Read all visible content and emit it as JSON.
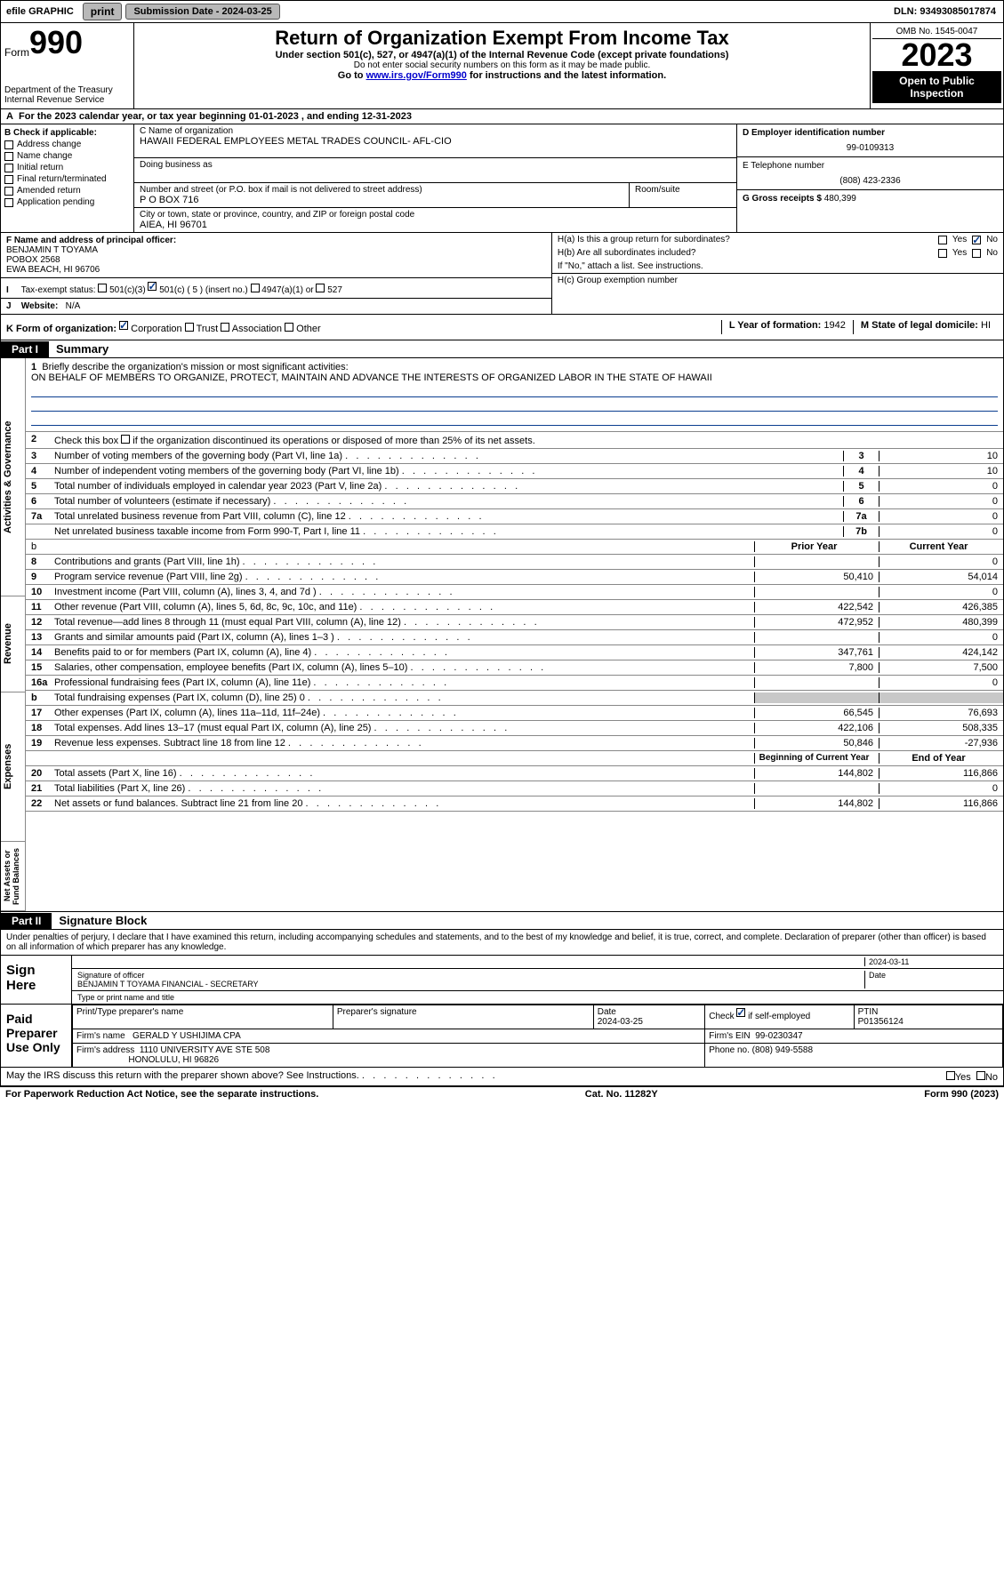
{
  "topbar": {
    "efile_label": "efile GRAPHIC",
    "print_btn": "print",
    "submission_label": "Submission Date - 2024-03-25",
    "dln_label": "DLN: 93493085017874"
  },
  "header": {
    "form_word": "Form",
    "form_num": "990",
    "dept1": "Department of the Treasury",
    "dept2": "Internal Revenue Service",
    "title": "Return of Organization Exempt From Income Tax",
    "sub": "Under section 501(c), 527, or 4947(a)(1) of the Internal Revenue Code (except private foundations)",
    "sub2": "Do not enter social security numbers on this form as it may be made public.",
    "sub3": "Go to ",
    "link": "www.irs.gov/Form990",
    "sub3b": " for instructions and the latest information.",
    "omb": "OMB No. 1545-0047",
    "year": "2023",
    "open": "Open to Public Inspection"
  },
  "line_a": "For the 2023 calendar year, or tax year beginning 01-01-2023    , and ending 12-31-2023",
  "section_b": {
    "label": "B Check if applicable:",
    "items": [
      "Address change",
      "Name change",
      "Initial return",
      "Final return/terminated",
      "Amended return",
      "Application pending"
    ]
  },
  "section_c": {
    "label": "C Name of organization",
    "name": "HAWAII FEDERAL EMPLOYEES METAL TRADES COUNCIL- AFL-CIO",
    "dba_label": "Doing business as",
    "addr_label": "Number and street (or P.O. box if mail is not delivered to street address)",
    "room_label": "Room/suite",
    "addr": "P O BOX 716",
    "city_label": "City or town, state or province, country, and ZIP or foreign postal code",
    "city": "AIEA, HI  96701"
  },
  "section_d": {
    "label": "D Employer identification number",
    "val": "99-0109313"
  },
  "section_e": {
    "label": "E Telephone number",
    "val": "(808) 423-2336"
  },
  "section_g": {
    "label": "G Gross receipts $",
    "val": "480,399"
  },
  "section_f": {
    "label": "F  Name and address of principal officer:",
    "name": "BENJAMIN T TOYAMA",
    "addr1": "POBOX 2568",
    "addr2": "EWA BEACH, HI  96706"
  },
  "h_a": "H(a)  Is this a group return for subordinates?",
  "h_b": "H(b)  Are all subordinates included?",
  "h_b_note": "If \"No,\" attach a list. See instructions.",
  "h_c": "H(c)  Group exemption number",
  "line_i": {
    "label": "Tax-exempt status:",
    "opt1": "501(c)(3)",
    "opt2": "501(c) ( 5 ) (insert no.)",
    "opt3": "4947(a)(1) or",
    "opt4": "527"
  },
  "line_j": {
    "label": "Website:",
    "val": "N/A"
  },
  "line_k": {
    "label": "K Form of organization:",
    "opts": [
      "Corporation",
      "Trust",
      "Association",
      "Other"
    ]
  },
  "line_l": {
    "label": "L Year of formation:",
    "val": "1942"
  },
  "line_m": {
    "label": "M State of legal domicile:",
    "val": "HI"
  },
  "part1": {
    "hdr": "Part I",
    "title": "Summary"
  },
  "mission": {
    "label": "Briefly describe the organization's mission or most significant activities:",
    "text": "ON BEHALF OF MEMBERS TO ORGANIZE, PROTECT, MAINTAIN AND ADVANCE THE INTERESTS OF ORGANIZED LABOR IN THE STATE OF HAWAII"
  },
  "line2": "Check this box        if the organization discontinued its operations or disposed of more than 25% of its net assets.",
  "ag_lines": [
    {
      "n": "3",
      "t": "Number of voting members of the governing body (Part VI, line 1a)",
      "box": "3",
      "v": "10"
    },
    {
      "n": "4",
      "t": "Number of independent voting members of the governing body (Part VI, line 1b)",
      "box": "4",
      "v": "10"
    },
    {
      "n": "5",
      "t": "Total number of individuals employed in calendar year 2023 (Part V, line 2a)",
      "box": "5",
      "v": "0"
    },
    {
      "n": "6",
      "t": "Total number of volunteers (estimate if necessary)",
      "box": "6",
      "v": "0"
    },
    {
      "n": "7a",
      "t": "Total unrelated business revenue from Part VIII, column (C), line 12",
      "box": "7a",
      "v": "0"
    },
    {
      "n": "",
      "t": "Net unrelated business taxable income from Form 990-T, Part I, line 11",
      "box": "7b",
      "v": "0"
    }
  ],
  "col_hdr": {
    "prior": "Prior Year",
    "current": "Current Year"
  },
  "rev_lines": [
    {
      "n": "8",
      "t": "Contributions and grants (Part VIII, line 1h)",
      "p": "",
      "c": "0"
    },
    {
      "n": "9",
      "t": "Program service revenue (Part VIII, line 2g)",
      "p": "50,410",
      "c": "54,014"
    },
    {
      "n": "10",
      "t": "Investment income (Part VIII, column (A), lines 3, 4, and 7d )",
      "p": "",
      "c": "0"
    },
    {
      "n": "11",
      "t": "Other revenue (Part VIII, column (A), lines 5, 6d, 8c, 9c, 10c, and 11e)",
      "p": "422,542",
      "c": "426,385"
    },
    {
      "n": "12",
      "t": "Total revenue—add lines 8 through 11 (must equal Part VIII, column (A), line 12)",
      "p": "472,952",
      "c": "480,399"
    }
  ],
  "exp_lines": [
    {
      "n": "13",
      "t": "Grants and similar amounts paid (Part IX, column (A), lines 1–3 )",
      "p": "",
      "c": "0"
    },
    {
      "n": "14",
      "t": "Benefits paid to or for members (Part IX, column (A), line 4)",
      "p": "347,761",
      "c": "424,142"
    },
    {
      "n": "15",
      "t": "Salaries, other compensation, employee benefits (Part IX, column (A), lines 5–10)",
      "p": "7,800",
      "c": "7,500"
    },
    {
      "n": "16a",
      "t": "Professional fundraising fees (Part IX, column (A), line 11e)",
      "p": "",
      "c": "0"
    },
    {
      "n": "b",
      "t": "Total fundraising expenses (Part IX, column (D), line 25) 0",
      "p": "grey",
      "c": "grey"
    },
    {
      "n": "17",
      "t": "Other expenses (Part IX, column (A), lines 11a–11d, 11f–24e)",
      "p": "66,545",
      "c": "76,693"
    },
    {
      "n": "18",
      "t": "Total expenses. Add lines 13–17 (must equal Part IX, column (A), line 25)",
      "p": "422,106",
      "c": "508,335"
    },
    {
      "n": "19",
      "t": "Revenue less expenses. Subtract line 18 from line 12",
      "p": "50,846",
      "c": "-27,936"
    }
  ],
  "na_hdr": {
    "begin": "Beginning of Current Year",
    "end": "End of Year"
  },
  "na_lines": [
    {
      "n": "20",
      "t": "Total assets (Part X, line 16)",
      "p": "144,802",
      "c": "116,866"
    },
    {
      "n": "21",
      "t": "Total liabilities (Part X, line 26)",
      "p": "",
      "c": "0"
    },
    {
      "n": "22",
      "t": "Net assets or fund balances. Subtract line 21 from line 20",
      "p": "144,802",
      "c": "116,866"
    }
  ],
  "side_labels": {
    "ag": "Activities & Governance",
    "rev": "Revenue",
    "exp": "Expenses",
    "na": "Net Assets or Fund Balances"
  },
  "part2": {
    "hdr": "Part II",
    "title": "Signature Block"
  },
  "sig_decl": "Under penalties of perjury, I declare that I have examined this return, including accompanying schedules and statements, and to the best of my knowledge and belief, it is true, correct, and complete. Declaration of preparer (other than officer) is based on all information of which preparer has any knowledge.",
  "sign_here": "Sign Here",
  "sig_date": "2024-03-11",
  "sig_officer_label": "Signature of officer",
  "sig_officer_name": "BENJAMIN T TOYAMA FINANCIAL - SECRETARY",
  "sig_type_label": "Type or print name and title",
  "sig_date_label": "Date",
  "paid_prep": "Paid Preparer Use Only",
  "prep": {
    "name_label": "Print/Type preparer's name",
    "sig_label": "Preparer's signature",
    "date_label": "Date",
    "date": "2024-03-25",
    "self_emp_label": "Check         if self-employed",
    "ptin_label": "PTIN",
    "ptin": "P01356124",
    "firm_name_label": "Firm's name",
    "firm_name": "GERALD Y USHIJIMA CPA",
    "firm_ein_label": "Firm's EIN",
    "firm_ein": "99-0230347",
    "firm_addr_label": "Firm's address",
    "firm_addr1": "1110 UNIVERSITY AVE STE 508",
    "firm_addr2": "HONOLULU, HI  96826",
    "phone_label": "Phone no.",
    "phone": "(808) 949-5588"
  },
  "discuss": "May the IRS discuss this return with the preparer shown above? See Instructions.",
  "yes": "Yes",
  "no": "No",
  "footer": {
    "left": "For Paperwork Reduction Act Notice, see the separate instructions.",
    "mid": "Cat. No. 11282Y",
    "right": "Form 990 (2023)"
  }
}
